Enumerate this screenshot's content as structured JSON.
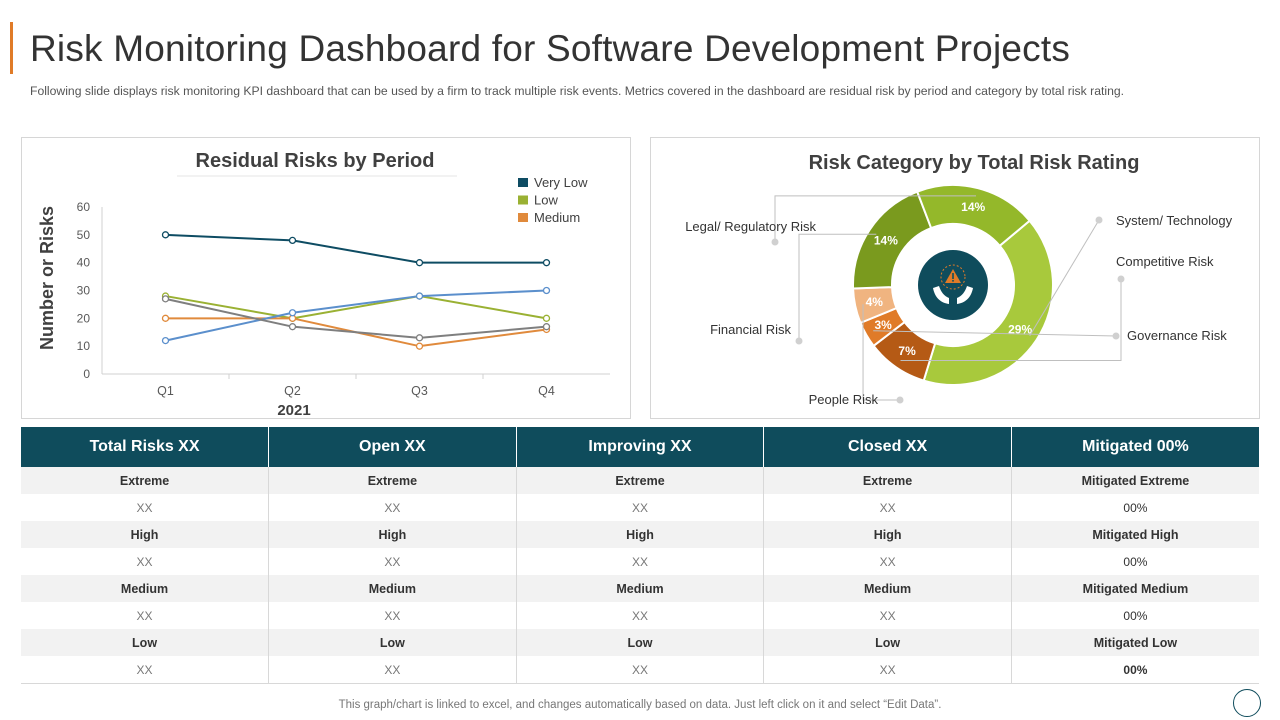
{
  "header": {
    "title": "Risk Monitoring Dashboard for Software Development Projects",
    "subtitle": "Following slide displays risk monitoring KPI dashboard that can be used by a firm to track multiple risk events. Metrics covered  in the dashboard  are residual risk by period  and category  by total risk rating."
  },
  "colors": {
    "accent": "#e07b28",
    "header_teal": "#0f4c5c",
    "very_low": "#0e4c63",
    "low": "#9ab133",
    "medium": "#e08a3c",
    "extra_blue": "#5b8fcc",
    "extra_gray": "#7f7f7f"
  },
  "chart_data": [
    {
      "type": "line",
      "title": "Residual Risks by Period",
      "xlabel": "2021",
      "ylabel": "Number or Risks",
      "categories": [
        "Q1",
        "Q2",
        "Q3",
        "Q4"
      ],
      "ylim": [
        0,
        60
      ],
      "yticks": [
        0,
        10,
        20,
        30,
        40,
        50,
        60
      ],
      "series": [
        {
          "name": "Very Low",
          "color": "#0e4c63",
          "values": [
            50,
            48,
            40,
            40
          ],
          "in_legend": true
        },
        {
          "name": "Low",
          "color": "#9ab133",
          "values": [
            28,
            20,
            28,
            20
          ],
          "in_legend": true
        },
        {
          "name": "Medium",
          "color": "#e08a3c",
          "values": [
            20,
            20,
            10,
            16
          ],
          "in_legend": true
        },
        {
          "name": "",
          "color": "#5b8fcc",
          "values": [
            12,
            22,
            28,
            30
          ],
          "in_legend": false
        },
        {
          "name": "",
          "color": "#7f7f7f",
          "values": [
            27,
            17,
            13,
            17
          ],
          "in_legend": false
        }
      ]
    },
    {
      "type": "pie",
      "title": "Risk Category  by Total Risk Rating",
      "slices": [
        {
          "label": "System/ Technology",
          "value": 29,
          "display": "29%",
          "color": "#a8c93c"
        },
        {
          "label": "Competitive  Risk",
          "value": 7,
          "display": "7%",
          "color": "#b55a15"
        },
        {
          "label": "Governance  Risk",
          "value": 3,
          "display": "3%",
          "color": "#e07b28"
        },
        {
          "label": "People Risk",
          "value": 4,
          "display": "4%",
          "color": "#f0b480"
        },
        {
          "label": "Financial Risk",
          "value": 14,
          "display": "14%",
          "color": "#7a9a1e"
        },
        {
          "label": "Legal/ Regulatory Risk",
          "value": 14,
          "display": "14%",
          "color": "#94b82a"
        }
      ]
    }
  ],
  "table": {
    "headers": [
      "Total Risks  XX",
      "Open XX",
      "Improving XX",
      "Closed  XX",
      "Mitigated 00%"
    ],
    "rows": [
      [
        "Extreme",
        "Extreme",
        "Extreme",
        "Extreme",
        "Mitigated Extreme"
      ],
      [
        "XX",
        "XX",
        "XX",
        "XX",
        "00%"
      ],
      [
        "High",
        "High",
        "High",
        "High",
        "Mitigated High"
      ],
      [
        "XX",
        "XX",
        "XX",
        "XX",
        "00%"
      ],
      [
        "Medium",
        "Medium",
        "Medium",
        "Medium",
        "Mitigated Medium"
      ],
      [
        "XX",
        "XX",
        "XX",
        "XX",
        "00%"
      ],
      [
        "Low",
        "Low",
        "Low",
        "Low",
        "Mitigated Low"
      ],
      [
        "XX",
        "XX",
        "XX",
        "XX",
        "00%"
      ]
    ]
  },
  "footnote": "This graph/chart is linked to excel,  and changes automatically based on data. Just left click on it and select “Edit  Data”.",
  "icons": {
    "center_icon": "hands-warning-icon",
    "nav": "circle-nav-icon"
  }
}
